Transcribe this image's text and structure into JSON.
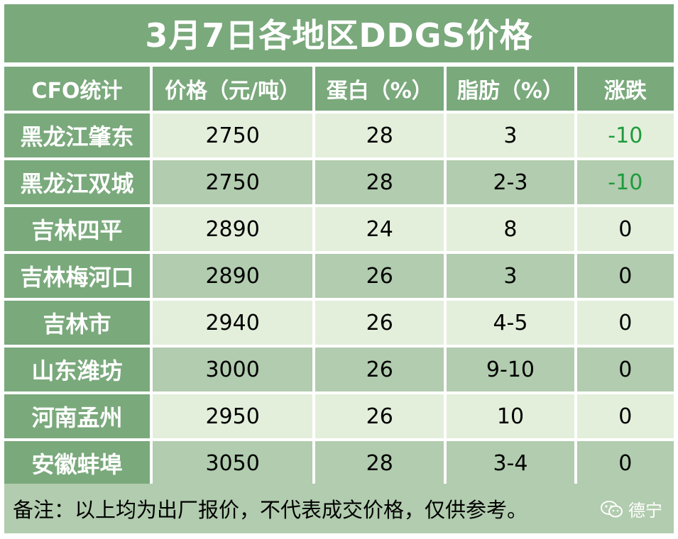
{
  "title": "3月7日各地区DDGS价格",
  "headers": [
    "CFO统计",
    "价格（元/吨）",
    "蛋白（%）",
    "脂肪（%）",
    "涨跌"
  ],
  "rows": [
    {
      "region": "黑龙江肇东",
      "price": "2750",
      "protein": "28",
      "fat": "3",
      "change": "-10"
    },
    {
      "region": "黑龙江双城",
      "price": "2750",
      "protein": "28",
      "fat": "2-3",
      "change": "-10"
    },
    {
      "region": "吉林四平",
      "price": "2890",
      "protein": "24",
      "fat": "8",
      "change": "0"
    },
    {
      "region": "吉林梅河口",
      "price": "2890",
      "protein": "26",
      "fat": "3",
      "change": "0"
    },
    {
      "region": "吉林市",
      "price": "2940",
      "protein": "26",
      "fat": "4-5",
      "change": "0"
    },
    {
      "region": "山东潍坊",
      "price": "3000",
      "protein": "26",
      "fat": "9-10",
      "change": "0"
    },
    {
      "region": "河南孟州",
      "price": "2950",
      "protein": "26",
      "fat": "10",
      "change": "0"
    },
    {
      "region": "安徽蚌埠",
      "price": "3050",
      "protein": "28",
      "fat": "3-4",
      "change": "0"
    }
  ],
  "footer": "备注：以上均为出厂报价，不代表成交价格，仅供参考。",
  "watermark": {
    "text": "德宁",
    "icon": "wechat-icon"
  },
  "colors": {
    "header_green": "#7aa97c",
    "row_light": "#e3efdb",
    "row_dark": "#b1ccae",
    "negative_change": "#1e9b3c"
  }
}
